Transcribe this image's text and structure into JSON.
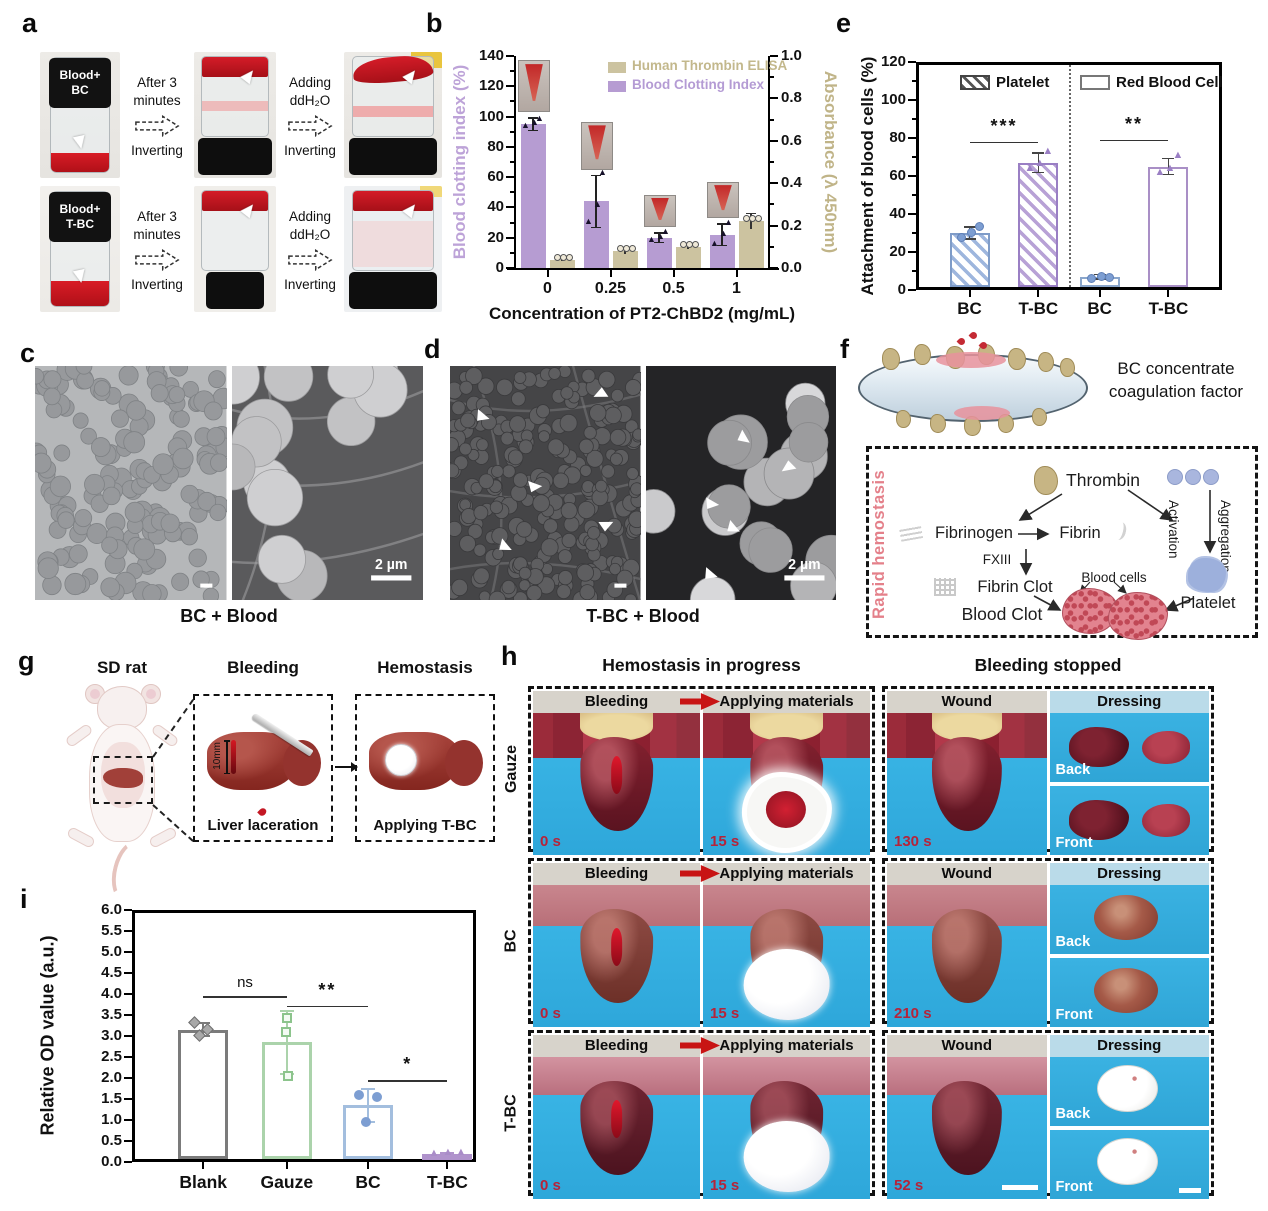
{
  "panel_a": {
    "label": "a",
    "rows": [
      {
        "vial_line1": "Blood+",
        "vial_line2": "BC",
        "arrow1_line1": "After 3",
        "arrow1_line2": "minutes",
        "arrow1_caption": "Inverting",
        "arrow2_line1": "Adding",
        "arrow2_line2": "ddH₂O",
        "arrow2_caption": "Inverting"
      },
      {
        "vial_line1": "Blood+",
        "vial_line2": "T-BC",
        "arrow1_line1": "After 3",
        "arrow1_line2": "minutes",
        "arrow1_caption": "Inverting",
        "arrow2_line1": "Adding",
        "arrow2_line2": "ddH₂O",
        "arrow2_caption": "Inverting"
      }
    ]
  },
  "chart_data": [
    {
      "panel_label": "b",
      "type": "bar",
      "xlabel": "Concentration of PT2-ChBD2 (mg/mL)",
      "categories": [
        "0",
        "0.25",
        "0.5",
        "1"
      ],
      "left_axis": {
        "label": "Blood clotting index (%)",
        "min": 0,
        "max": 140,
        "major_step": 20,
        "minor_step": 10,
        "title_color": "#bda3d8"
      },
      "right_axis": {
        "label": "Absorbance (λ 450nm)",
        "min": 0,
        "max": 1,
        "major_step": 0.2,
        "minor_step": 0.1,
        "title_color": "#c0b488"
      },
      "series": [
        {
          "name": "Blood Clotting Index",
          "axis": "left",
          "color": "#b69cd2",
          "values": [
            95,
            44,
            20,
            22
          ],
          "errors": [
            4,
            17,
            3,
            7
          ],
          "points": [
            [
              93,
              95,
              98
            ],
            [
              30,
              41,
              62
            ],
            [
              18,
              20,
              23
            ],
            [
              15,
              22,
              29
            ]
          ]
        },
        {
          "name": "Human Thrombin ELISA",
          "axis": "right",
          "color": "#ccc3a0",
          "values": [
            0.04,
            0.08,
            0.1,
            0.22
          ],
          "errors": [
            0.008,
            0.012,
            0.012,
            0.035
          ]
        }
      ],
      "legend": [
        {
          "label": "Human Thrombin ELISA",
          "color": "#ccc3a0",
          "text_color": "#c3b88c"
        },
        {
          "label": "Blood Clotting Index",
          "color": "#b69cd2",
          "text_color": "#b49bd4"
        }
      ]
    },
    {
      "panel_label": "e",
      "type": "bar",
      "ylabel": "Attachment of blood cells (%)",
      "ylim": [
        0,
        120
      ],
      "major_step": 20,
      "minor_step": 10,
      "categories": [
        "BC",
        "T-BC",
        "BC",
        "T-BC"
      ],
      "values": [
        30,
        67,
        7,
        65
      ],
      "errors": [
        3,
        5,
        1,
        4
      ],
      "points": [
        [
          28,
          31,
          34
        ],
        [
          63,
          66,
          72
        ],
        [
          6.5,
          7.5,
          7
        ],
        [
          61,
          63,
          70
        ]
      ],
      "bar_styles": [
        "bar-hb",
        "bar-hp",
        "bar-ob",
        "bar-op"
      ],
      "legend": [
        {
          "label": "Platelet",
          "style": "hatch"
        },
        {
          "label": "Red Blood Cell",
          "style": "open"
        }
      ],
      "significance": [
        {
          "label": "***",
          "from": 0,
          "to": 1,
          "line_y": 78
        },
        {
          "label": "**",
          "from": 2,
          "to": 3,
          "line_y": 79
        }
      ]
    },
    {
      "panel_label": "i",
      "type": "bar",
      "ylabel": "Relative OD value (a.u.)",
      "ylim": [
        0,
        6
      ],
      "major_step": 0.5,
      "categories": [
        "Blank",
        "Gauze",
        "BC",
        "T-BC"
      ],
      "values": [
        3.15,
        2.85,
        1.35,
        0.18
      ],
      "errors": [
        0.15,
        0.75,
        0.4,
        0.04
      ],
      "points": [
        [
          3.3,
          3.15,
          3.0
        ],
        [
          3.42,
          3.1,
          2.05
        ],
        [
          1.6,
          1.55,
          0.95
        ],
        [
          0.17,
          0.2,
          0.18
        ]
      ],
      "marker_shapes": [
        "diamond",
        "square",
        "circle",
        "triangle"
      ],
      "bar_colors": [
        "#7b7b7b",
        "#abd3ab",
        "#a3bede",
        "#b093cc"
      ],
      "significance": [
        {
          "label": "ns",
          "from": 0,
          "to": 1,
          "line_y": 3.95
        },
        {
          "label": "**",
          "from": 1,
          "to": 2,
          "line_y": 3.72
        },
        {
          "label": "*",
          "from": 2,
          "to": 3,
          "line_y": 1.95
        }
      ]
    }
  ],
  "panel_c": {
    "label": "c",
    "caption": "BC + Blood",
    "scale_bar": "2 µm"
  },
  "panel_d": {
    "label": "d",
    "caption": "T-BC + Blood",
    "scale_bar": "2 µm"
  },
  "panel_f": {
    "label": "f",
    "caption_line1": "BC concentrate",
    "caption_line2": "coagulation factor",
    "side_label": "Rapid hemostasis",
    "thrombin": "Thrombin",
    "fibrinogen": "Fibrinogen",
    "fibrin": "Fibrin",
    "fxiii": "FXIII",
    "fibrin_clot": "Fibrin Clot",
    "blood_cells": "Blood cells",
    "platelet": "Platelet",
    "blood_clot": "Blood Clot",
    "activation": "Activation",
    "aggregation": "Aggregation"
  },
  "panel_g": {
    "label": "g",
    "header_rat": "SD rat",
    "header_bleeding": "Bleeding",
    "header_hemostasis": "Hemostasis",
    "laceration": "Liver laceration",
    "applying": "Applying T-BC",
    "incision": "10mm"
  },
  "panel_h": {
    "label": "h",
    "group_headers": [
      "Hemostasis in progress",
      "Bleeding stopped"
    ],
    "cell_headers": [
      "Bleeding",
      "Applying materials",
      "Wound",
      "Dressing"
    ],
    "dressing_sublabels": [
      "Back",
      "Front"
    ],
    "rows": [
      {
        "name": "Gauze",
        "times": [
          "0 s",
          "15 s",
          "130 s"
        ]
      },
      {
        "name": "BC",
        "times": [
          "0 s",
          "15 s",
          "210 s"
        ]
      },
      {
        "name": "T-BC",
        "times": [
          "0 s",
          "15 s",
          "52 s"
        ]
      }
    ]
  }
}
